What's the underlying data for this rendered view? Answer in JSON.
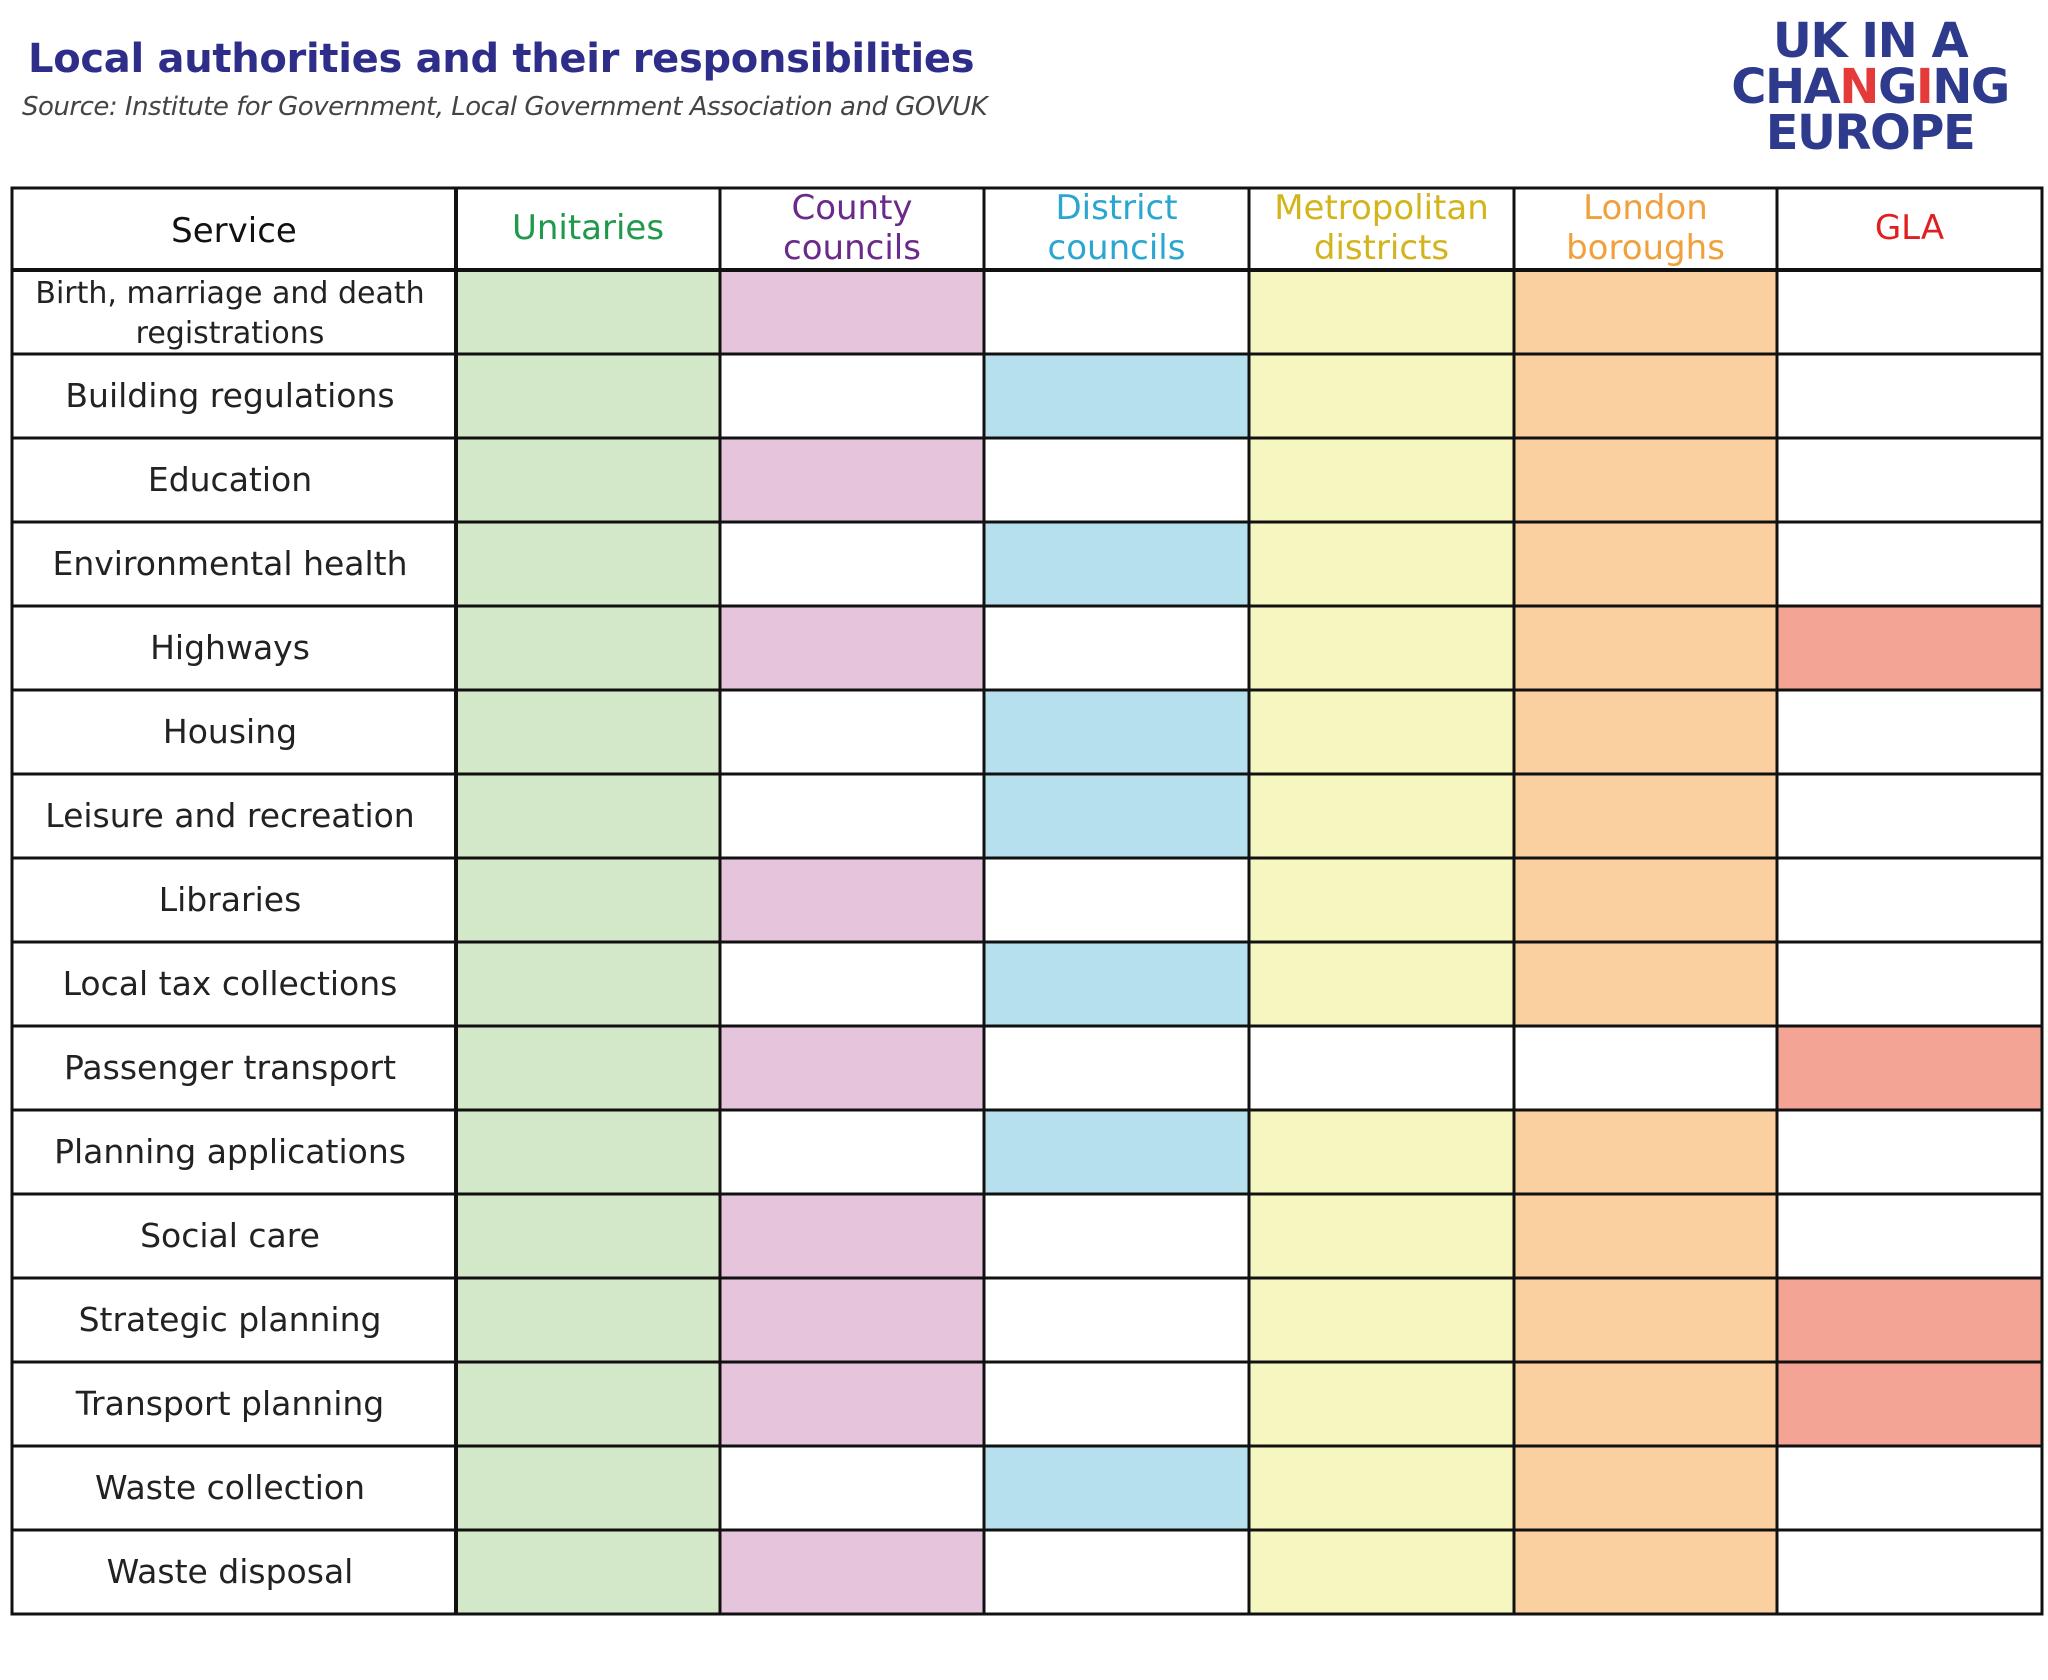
{
  "title": "Local authorities and their responsibilities",
  "subtitle": "Source: Institute for Government, Local Government Association and GOVUK",
  "logo": {
    "line1": "UK IN A",
    "line2_a": "CHA",
    "line2_b": "N",
    "line2_c": "G",
    "line2_d": "I",
    "line2_e": "NG",
    "line3": "EUROPE"
  },
  "colors": {
    "title": "#2e2e8a",
    "grid_line": "#111111",
    "service_text": "#222222",
    "header_text": "#111111",
    "logo_blue": "#2e3a8c",
    "logo_red": "#e43a3a"
  },
  "chart_data": {
    "type": "table",
    "service_header": "Service",
    "columns": [
      {
        "label": [
          "Unitaries"
        ],
        "text_color": "#1e9a4a",
        "fill": "#d2e8c8"
      },
      {
        "label": [
          "County",
          "councils"
        ],
        "text_color": "#6a2a8a",
        "fill": "#e6c4dc"
      },
      {
        "label": [
          "District",
          "councils"
        ],
        "text_color": "#2aa6d0",
        "fill": "#b6e0ee"
      },
      {
        "label": [
          "Metropolitan",
          "districts"
        ],
        "text_color": "#d4b41c",
        "fill": "#f6f6c0"
      },
      {
        "label": [
          "London",
          "boroughs"
        ],
        "text_color": "#f0a03c",
        "fill": "#fad0a0"
      },
      {
        "label": [
          "GLA"
        ],
        "text_color": "#e02020",
        "fill": "#f4a494"
      }
    ],
    "rows": [
      {
        "service": [
          "Birth, marriage and death",
          "registrations"
        ],
        "cells": [
          1,
          1,
          0,
          1,
          1,
          0
        ]
      },
      {
        "service": [
          "Building regulations"
        ],
        "cells": [
          1,
          0,
          1,
          1,
          1,
          0
        ]
      },
      {
        "service": [
          "Education"
        ],
        "cells": [
          1,
          1,
          0,
          1,
          1,
          0
        ]
      },
      {
        "service": [
          "Environmental health"
        ],
        "cells": [
          1,
          0,
          1,
          1,
          1,
          0
        ]
      },
      {
        "service": [
          "Highways"
        ],
        "cells": [
          1,
          1,
          0,
          1,
          1,
          1
        ]
      },
      {
        "service": [
          "Housing"
        ],
        "cells": [
          1,
          0,
          1,
          1,
          1,
          0
        ]
      },
      {
        "service": [
          "Leisure and recreation"
        ],
        "cells": [
          1,
          0,
          1,
          1,
          1,
          0
        ]
      },
      {
        "service": [
          "Libraries"
        ],
        "cells": [
          1,
          1,
          0,
          1,
          1,
          0
        ]
      },
      {
        "service": [
          "Local tax collections"
        ],
        "cells": [
          1,
          0,
          1,
          1,
          1,
          0
        ]
      },
      {
        "service": [
          "Passenger transport"
        ],
        "cells": [
          1,
          1,
          0,
          0,
          0,
          1
        ]
      },
      {
        "service": [
          "Planning  applications"
        ],
        "cells": [
          1,
          0,
          1,
          1,
          1,
          0
        ]
      },
      {
        "service": [
          "Social care"
        ],
        "cells": [
          1,
          1,
          0,
          1,
          1,
          0
        ]
      },
      {
        "service": [
          "Strategic planning"
        ],
        "cells": [
          1,
          1,
          0,
          1,
          1,
          1
        ]
      },
      {
        "service": [
          "Transport planning"
        ],
        "cells": [
          1,
          1,
          0,
          1,
          1,
          1
        ]
      },
      {
        "service": [
          "Waste collection"
        ],
        "cells": [
          1,
          0,
          1,
          1,
          1,
          0
        ]
      },
      {
        "service": [
          "Waste disposal"
        ],
        "cells": [
          1,
          1,
          0,
          1,
          1,
          0
        ]
      }
    ]
  }
}
